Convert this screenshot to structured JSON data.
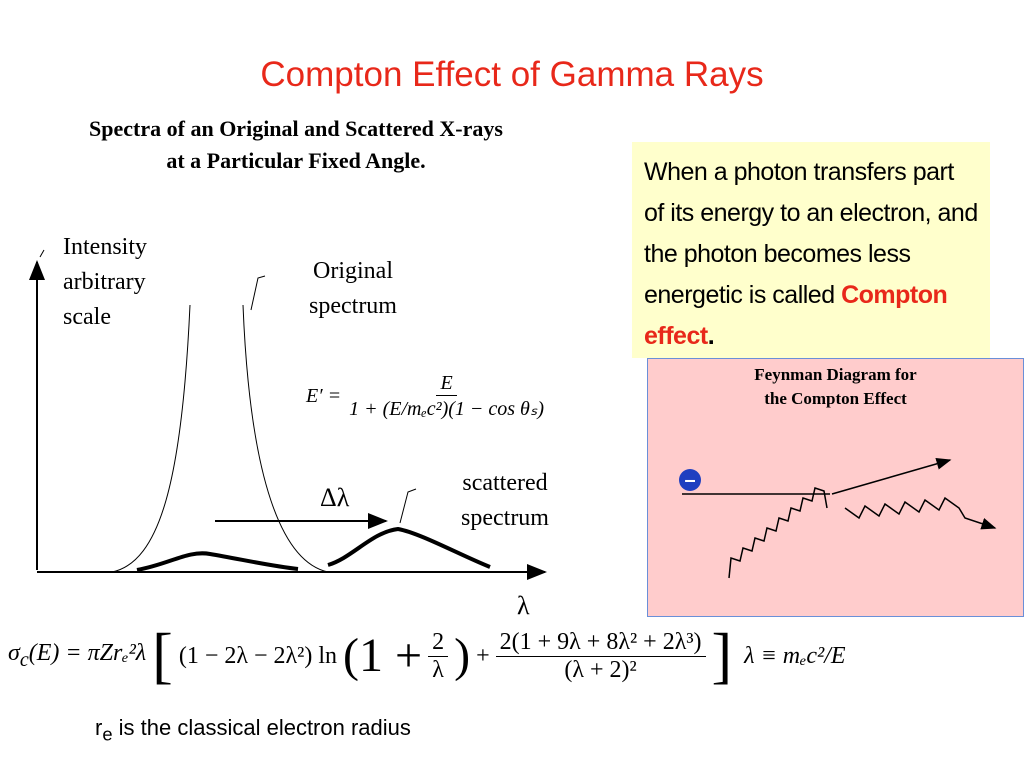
{
  "title": "Compton Effect of Gamma Rays",
  "subtitle": [
    "Spectra of an Original and Scattered X-rays",
    "at a Particular Fixed Angle."
  ],
  "plot": {
    "y_label": [
      "Intensity",
      "arbitrary",
      "scale"
    ],
    "original_label": [
      "Original",
      "spectrum"
    ],
    "scattered_label": [
      "scattered",
      "spectrum"
    ],
    "shift_label": "Δλ",
    "x_label": "λ"
  },
  "energy_formula": {
    "lhs": "E′ =",
    "numerator": "E",
    "denominator": "1 + (E/mₑc²)(1 − cos θₛ)"
  },
  "note": {
    "text": "When a photon transfers part of its energy to an electron, and the photon becomes less energetic is called ",
    "highlight": "Compton effect",
    "end": "."
  },
  "feynman": {
    "title": [
      "Feynman Diagram for",
      "the Compton Effect"
    ],
    "electron": "–"
  },
  "cross_section": {
    "lhs": "σ",
    "lhs_sub": "c",
    "lhs_rest": "(E) = πZrₑ²λ",
    "open_bracket": "[",
    "log_term": "(1 − 2λ − 2λ²) ln",
    "paren_open": "(1 +",
    "frac1_num": "2",
    "frac1_den": "λ",
    "paren_close": ")",
    "plus": "+",
    "frac2_num": "2(1 + 9λ + 8λ² + 2λ³)",
    "frac2_den": "(λ + 2)²",
    "close_bracket": "]",
    "definition": "λ ≡ mₑc²/E"
  },
  "footnote": {
    "base": "r",
    "sub": "e",
    "text": " is the classical electron radius"
  }
}
